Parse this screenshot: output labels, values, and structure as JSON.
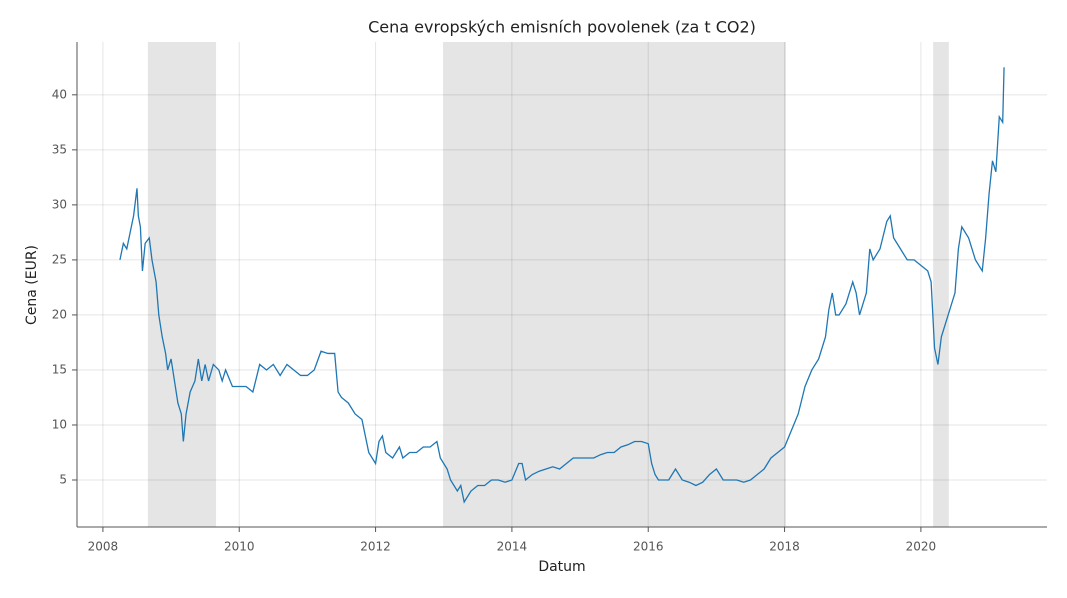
{
  "chart_data": {
    "type": "line",
    "title": "Cena evropských emisních povolenek (za t CO2)",
    "x_label": "Datum",
    "y_label": "Cena (EUR)",
    "x": [
      2008.25,
      2008.3,
      2008.35,
      2008.4,
      2008.45,
      2008.5,
      2008.52,
      2008.55,
      2008.58,
      2008.62,
      2008.68,
      2008.72,
      2008.78,
      2008.82,
      2008.87,
      2008.92,
      2008.95,
      2009.0,
      2009.05,
      2009.1,
      2009.15,
      2009.18,
      2009.22,
      2009.28,
      2009.35,
      2009.4,
      2009.45,
      2009.5,
      2009.55,
      2009.62,
      2009.7,
      2009.75,
      2009.8,
      2009.9,
      2010.0,
      2010.1,
      2010.2,
      2010.3,
      2010.4,
      2010.5,
      2010.6,
      2010.7,
      2010.8,
      2010.9,
      2011.0,
      2011.1,
      2011.2,
      2011.3,
      2011.4,
      2011.45,
      2011.5,
      2011.6,
      2011.7,
      2011.8,
      2011.85,
      2011.9,
      2011.95,
      2012.0,
      2012.05,
      2012.1,
      2012.15,
      2012.25,
      2012.35,
      2012.4,
      2012.5,
      2012.6,
      2012.7,
      2012.8,
      2012.9,
      2012.95,
      2013.05,
      2013.1,
      2013.15,
      2013.2,
      2013.25,
      2013.3,
      2013.4,
      2013.5,
      2013.6,
      2013.7,
      2013.8,
      2013.9,
      2014.0,
      2014.1,
      2014.15,
      2014.2,
      2014.3,
      2014.4,
      2014.5,
      2014.6,
      2014.7,
      2014.8,
      2014.9,
      2015.0,
      2015.1,
      2015.2,
      2015.3,
      2015.4,
      2015.5,
      2015.6,
      2015.7,
      2015.8,
      2015.9,
      2016.0,
      2016.05,
      2016.1,
      2016.15,
      2016.3,
      2016.4,
      2016.5,
      2016.6,
      2016.7,
      2016.8,
      2016.9,
      2017.0,
      2017.1,
      2017.2,
      2017.3,
      2017.4,
      2017.5,
      2017.6,
      2017.7,
      2017.8,
      2017.9,
      2018.0,
      2018.1,
      2018.2,
      2018.3,
      2018.4,
      2018.5,
      2018.6,
      2018.65,
      2018.7,
      2018.75,
      2018.8,
      2018.9,
      2019.0,
      2019.05,
      2019.1,
      2019.15,
      2019.2,
      2019.25,
      2019.3,
      2019.4,
      2019.5,
      2019.55,
      2019.6,
      2019.7,
      2019.8,
      2019.9,
      2020.0,
      2020.1,
      2020.15,
      2020.2,
      2020.25,
      2020.3,
      2020.4,
      2020.5,
      2020.55,
      2020.6,
      2020.7,
      2020.8,
      2020.9,
      2020.95,
      2021.0,
      2021.05,
      2021.1,
      2021.15,
      2021.2,
      2021.22
    ],
    "series": [
      {
        "color": "#1f77b4",
        "values": [
          25,
          26.5,
          26,
          27.5,
          29,
          31.5,
          29,
          28,
          24,
          26.5,
          27,
          25,
          23,
          20,
          18,
          16.5,
          15,
          16,
          14,
          12,
          11,
          8.5,
          11,
          13,
          14,
          16,
          14,
          15.5,
          14,
          15.5,
          15,
          14,
          15,
          13.5,
          13.5,
          13.5,
          13,
          15.5,
          15,
          15.5,
          14.5,
          15.5,
          15,
          14.5,
          14.5,
          15,
          16.7,
          16.5,
          16.5,
          13,
          12.5,
          12,
          11,
          10.5,
          9,
          7.5,
          7,
          6.5,
          8.5,
          9,
          7.5,
          7,
          8,
          7,
          7.5,
          7.5,
          8,
          8,
          8.5,
          7,
          6,
          5,
          4.5,
          4,
          4.5,
          3,
          4,
          4.5,
          4.5,
          5,
          5,
          4.8,
          5,
          6.5,
          6.5,
          5,
          5.5,
          5.8,
          6,
          6.2,
          6,
          6.5,
          7,
          7,
          7,
          7,
          7.3,
          7.5,
          7.5,
          8,
          8.2,
          8.5,
          8.5,
          8.3,
          6.5,
          5.5,
          5,
          5,
          6,
          5,
          4.8,
          4.5,
          4.8,
          5.5,
          6,
          5,
          5,
          5,
          4.8,
          5,
          5.5,
          6,
          7,
          7.5,
          8,
          9.5,
          11,
          13.5,
          15,
          16,
          18,
          20.5,
          22,
          20,
          20,
          21,
          23,
          22,
          20,
          21,
          22,
          26,
          25,
          26,
          28.5,
          29,
          27,
          26,
          25,
          25,
          24.5,
          24,
          23,
          17,
          15.5,
          18,
          20,
          22,
          26,
          28,
          27,
          25,
          24,
          27,
          31,
          34,
          33,
          38,
          37.5,
          42.5
        ]
      }
    ],
    "spans": [
      [
        2008.66,
        2009.66
      ],
      [
        2012.99,
        2018.02
      ],
      [
        2020.18,
        2020.41
      ]
    ],
    "span_color": "#e5e5e5",
    "xlim": [
      2007.62,
      2021.85
    ],
    "xticks": [
      2008,
      2010,
      2012,
      2014,
      2016,
      2018,
      2020
    ],
    "ylim": [
      0.73,
      44.8
    ],
    "yticks": [
      5,
      10,
      15,
      20,
      25,
      30,
      35,
      40
    ],
    "grid": true
  }
}
